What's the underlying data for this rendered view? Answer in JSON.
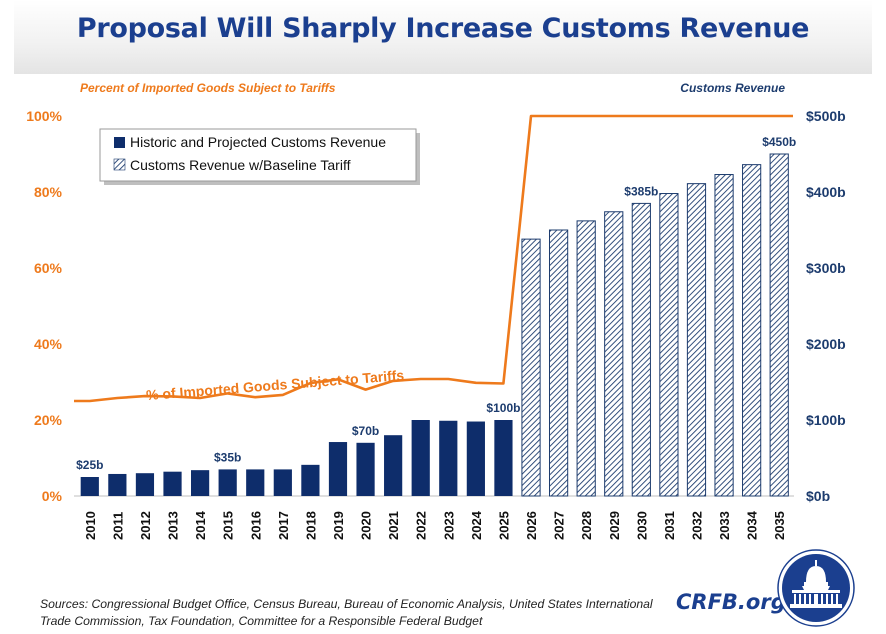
{
  "title": "Proposal Will Sharply Increase Customs Revenue",
  "left_axis_title": "Percent of Imported Goods Subject to Tariffs",
  "right_axis_title": "Customs Revenue",
  "line_label": "% of Imported Goods Subject to Tariffs",
  "sources": "Sources: Congressional Budget Office, Census Bureau, Bureau of Economic Analysis, United States International Trade Commission, Tax Foundation, Committee for a Responsible Federal Budget",
  "brand": "CRFB.org",
  "seal_icon": "capitol-dome-icon",
  "colors": {
    "title": "#1b3f8f",
    "bar": "#0e2d6b",
    "line": "#ee7a1c",
    "navy": "#1d3c6e"
  },
  "chart_data": {
    "type": "bar",
    "categories": [
      "2010",
      "2011",
      "2012",
      "2013",
      "2014",
      "2015",
      "2016",
      "2017",
      "2018",
      "2019",
      "2020",
      "2021",
      "2022",
      "2023",
      "2024",
      "2025",
      "2026",
      "2027",
      "2028",
      "2029",
      "2030",
      "2031",
      "2032",
      "2033",
      "2034",
      "2035"
    ],
    "series": [
      {
        "name": "Historic and Projected Customs Revenue",
        "axis": "right",
        "style": "solid",
        "values": [
          25,
          29,
          30,
          32,
          34,
          35,
          35,
          35,
          41,
          71,
          70,
          80,
          100,
          99,
          98,
          100,
          null,
          null,
          null,
          null,
          null,
          null,
          null,
          null,
          null,
          null
        ]
      },
      {
        "name": "Customs Revenue w/Baseline Tariff",
        "axis": "right",
        "style": "hatched",
        "values": [
          null,
          null,
          null,
          null,
          null,
          null,
          null,
          null,
          null,
          null,
          null,
          null,
          null,
          null,
          null,
          null,
          338,
          350,
          362,
          374,
          385,
          398,
          411,
          423,
          436,
          450
        ]
      },
      {
        "name": "% of Imported Goods Subject to Tariffs",
        "axis": "left",
        "type": "line",
        "values": [
          25,
          25.8,
          26.3,
          26.2,
          25.8,
          27,
          26,
          26.6,
          29.7,
          30.7,
          28,
          30.3,
          30.8,
          30.8,
          29.8,
          29.6,
          100,
          100,
          100,
          100,
          100,
          100,
          100,
          100,
          100,
          100
        ],
        "x_end": 2035.5
      }
    ],
    "left_axis": {
      "min": 0,
      "max": 100,
      "ticks": [
        "0%",
        "20%",
        "40%",
        "60%",
        "80%",
        "100%"
      ]
    },
    "right_axis": {
      "min": 0,
      "max": 500,
      "ticks": [
        "$0b",
        "$100b",
        "$200b",
        "$300b",
        "$400b",
        "$500b"
      ]
    },
    "bar_labels": [
      {
        "category": "2010",
        "text": "$25b"
      },
      {
        "category": "2015",
        "text": "$35b"
      },
      {
        "category": "2020",
        "text": "$70b"
      },
      {
        "category": "2025",
        "text": "$100b"
      },
      {
        "category": "2030",
        "text": "$385b"
      },
      {
        "category": "2035",
        "text": "$450b"
      }
    ],
    "legend_position": "top-left",
    "grid": false
  }
}
